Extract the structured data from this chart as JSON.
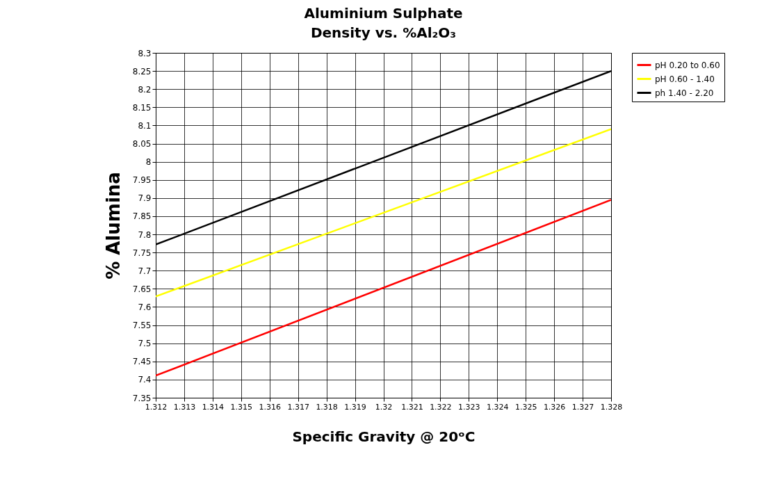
{
  "chart_data": {
    "type": "line",
    "title": "Aluminium Sulphate",
    "subtitle": "Density vs. %Al₂O₃",
    "xlabel": "Specific Gravity @ 20ᵒC",
    "ylabel": "% Alumina",
    "x": [
      1.312,
      1.328
    ],
    "series": [
      {
        "name": "pH 0.20 to 0.60",
        "color": "#ff0000",
        "values": [
          7.411,
          7.895
        ]
      },
      {
        "name": "pH 0.60 - 1.40",
        "color": "#ffff00",
        "values": [
          7.629,
          8.09
        ]
      },
      {
        "name": "ph 1.40 - 2.20",
        "color": "#000000",
        "values": [
          7.772,
          8.25
        ]
      }
    ],
    "xlim": [
      1.312,
      1.328
    ],
    "xticks": [
      1.312,
      1.313,
      1.314,
      1.315,
      1.316,
      1.317,
      1.318,
      1.319,
      1.32,
      1.321,
      1.322,
      1.323,
      1.324,
      1.325,
      1.326,
      1.327,
      1.328
    ],
    "ylim": [
      7.35,
      8.3
    ],
    "yticks": [
      7.35,
      7.4,
      7.45,
      7.5,
      7.55,
      7.6,
      7.65,
      7.7,
      7.75,
      7.8,
      7.85,
      7.9,
      7.95,
      8,
      8.05,
      8.1,
      8.15,
      8.2,
      8.25,
      8.3
    ],
    "grid": true,
    "legend": "right",
    "marker": "none",
    "line_style": "solid"
  }
}
